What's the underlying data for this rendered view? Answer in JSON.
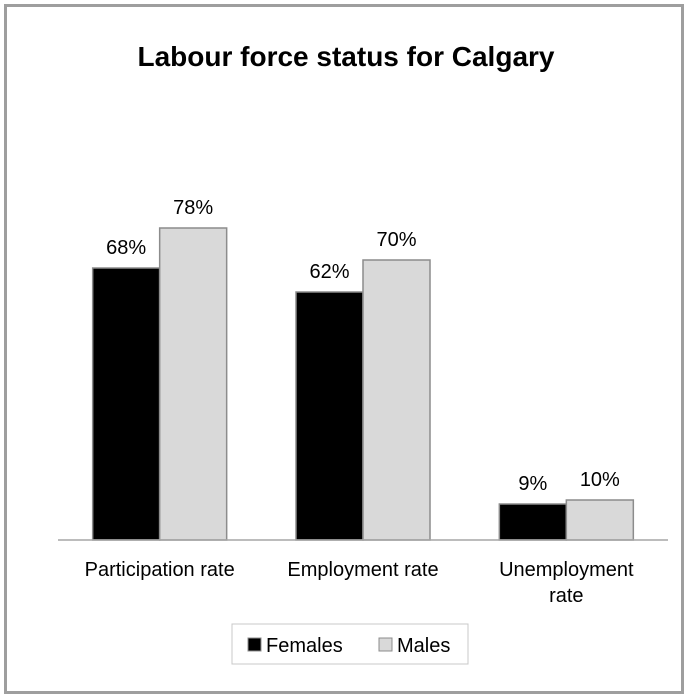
{
  "chart_data": {
    "type": "bar",
    "title": "Labour force status for Calgary",
    "categories": [
      "Participation rate",
      "Employment rate",
      "Unemployment rate"
    ],
    "category_lines": [
      [
        "Participation rate"
      ],
      [
        "Employment rate"
      ],
      [
        "Unemployment",
        "rate"
      ]
    ],
    "series": [
      {
        "name": "Females",
        "values": [
          68,
          62,
          9
        ],
        "labels": [
          "68%",
          "62%",
          "9%"
        ],
        "color": "#000000"
      },
      {
        "name": "Males",
        "values": [
          78,
          70,
          10
        ],
        "labels": [
          "78%",
          "70%",
          "10%"
        ],
        "color": "#d9d9d9"
      }
    ],
    "ylim": [
      0,
      100
    ],
    "grid": false,
    "legend_position": "bottom"
  }
}
